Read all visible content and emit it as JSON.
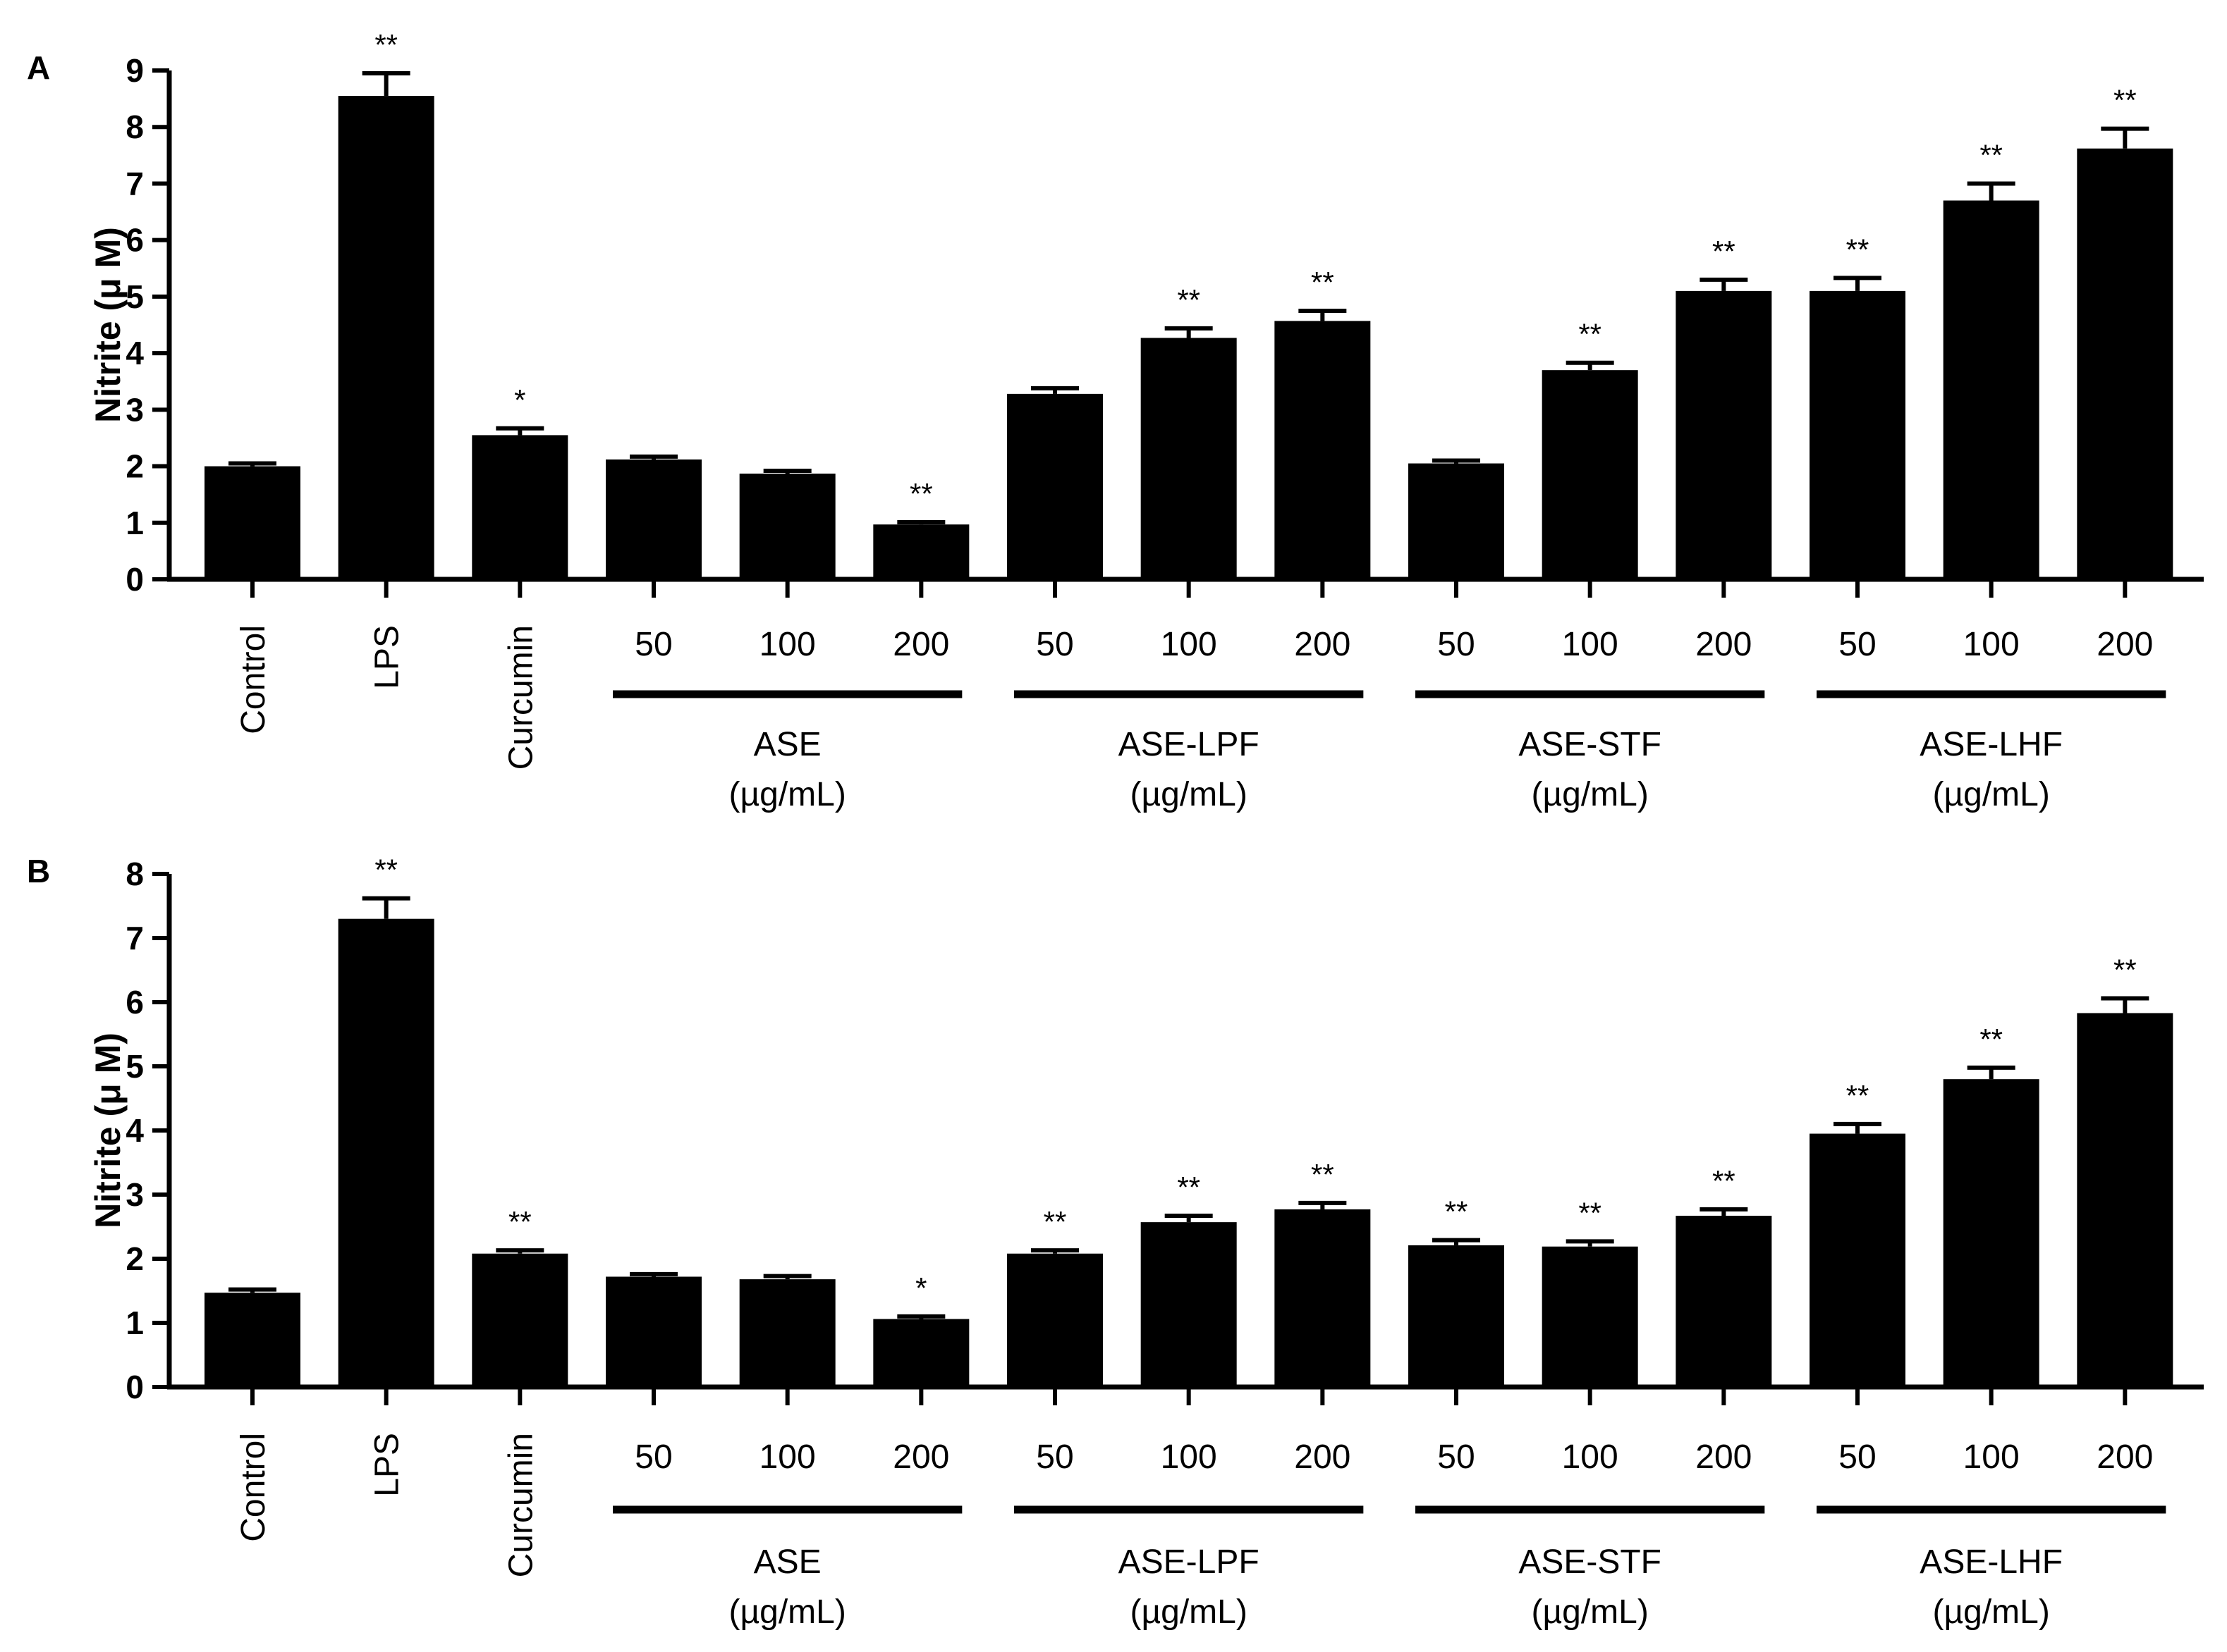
{
  "colors": {
    "bar": "#000000",
    "axis": "#000000",
    "background": "#ffffff"
  },
  "chart_data": [
    {
      "panel": "A",
      "type": "bar",
      "ylabel": "Nitrite (μ M)",
      "ylim": [
        0,
        9
      ],
      "yticks": [
        "0",
        "1",
        "2",
        "3",
        "4",
        "5",
        "6",
        "7",
        "8",
        "9"
      ],
      "bars": [
        {
          "label": "Control",
          "value": 2.0,
          "error": 0.05,
          "sig": ""
        },
        {
          "label": "LPS",
          "value": 8.55,
          "error": 0.4,
          "sig": "**"
        },
        {
          "label": "Curcumin",
          "value": 2.55,
          "error": 0.12,
          "sig": "*"
        },
        {
          "label": "50",
          "value": 2.12,
          "error": 0.05,
          "sig": ""
        },
        {
          "label": "100",
          "value": 1.87,
          "error": 0.05,
          "sig": ""
        },
        {
          "label": "200",
          "value": 0.97,
          "error": 0.04,
          "sig": "**"
        },
        {
          "label": "50",
          "value": 3.28,
          "error": 0.1,
          "sig": ""
        },
        {
          "label": "100",
          "value": 4.27,
          "error": 0.17,
          "sig": "**"
        },
        {
          "label": "200",
          "value": 4.57,
          "error": 0.18,
          "sig": "**"
        },
        {
          "label": "50",
          "value": 2.05,
          "error": 0.05,
          "sig": ""
        },
        {
          "label": "100",
          "value": 3.7,
          "error": 0.13,
          "sig": "**"
        },
        {
          "label": "200",
          "value": 5.1,
          "error": 0.2,
          "sig": "**"
        },
        {
          "label": "50",
          "value": 5.1,
          "error": 0.23,
          "sig": "**"
        },
        {
          "label": "100",
          "value": 6.7,
          "error": 0.3,
          "sig": "**"
        },
        {
          "label": "200",
          "value": 7.62,
          "error": 0.35,
          "sig": "**"
        }
      ],
      "groups": [
        {
          "name": "ASE",
          "unit": "(µg/mL)",
          "start": 3,
          "end": 5
        },
        {
          "name": "ASE-LPF",
          "unit": "(µg/mL)",
          "start": 6,
          "end": 8
        },
        {
          "name": "ASE-STF",
          "unit": "(µg/mL)",
          "start": 9,
          "end": 11
        },
        {
          "name": "ASE-LHF",
          "unit": "(µg/mL)",
          "start": 12,
          "end": 14
        }
      ]
    },
    {
      "panel": "B",
      "type": "bar",
      "ylabel": "Nitrite (μ M)",
      "ylim": [
        0,
        8
      ],
      "yticks": [
        "0",
        "1",
        "2",
        "3",
        "4",
        "5",
        "6",
        "7",
        "8"
      ],
      "bars": [
        {
          "label": "Control",
          "value": 1.47,
          "error": 0.05,
          "sig": ""
        },
        {
          "label": "LPS",
          "value": 7.3,
          "error": 0.32,
          "sig": "**"
        },
        {
          "label": "Curcumin",
          "value": 2.08,
          "error": 0.05,
          "sig": "**"
        },
        {
          "label": "50",
          "value": 1.72,
          "error": 0.04,
          "sig": ""
        },
        {
          "label": "100",
          "value": 1.68,
          "error": 0.05,
          "sig": ""
        },
        {
          "label": "200",
          "value": 1.06,
          "error": 0.04,
          "sig": "*"
        },
        {
          "label": "50",
          "value": 2.08,
          "error": 0.05,
          "sig": "**"
        },
        {
          "label": "100",
          "value": 2.57,
          "error": 0.1,
          "sig": "**"
        },
        {
          "label": "200",
          "value": 2.77,
          "error": 0.1,
          "sig": "**"
        },
        {
          "label": "50",
          "value": 2.21,
          "error": 0.08,
          "sig": "**"
        },
        {
          "label": "100",
          "value": 2.19,
          "error": 0.08,
          "sig": "**"
        },
        {
          "label": "200",
          "value": 2.67,
          "error": 0.1,
          "sig": "**"
        },
        {
          "label": "50",
          "value": 3.95,
          "error": 0.15,
          "sig": "**"
        },
        {
          "label": "100",
          "value": 4.8,
          "error": 0.18,
          "sig": "**"
        },
        {
          "label": "200",
          "value": 5.83,
          "error": 0.23,
          "sig": "**"
        }
      ],
      "groups": [
        {
          "name": "ASE",
          "unit": "(µg/mL)",
          "start": 3,
          "end": 5
        },
        {
          "name": "ASE-LPF",
          "unit": "(µg/mL)",
          "start": 6,
          "end": 8
        },
        {
          "name": "ASE-STF",
          "unit": "(µg/mL)",
          "start": 9,
          "end": 11
        },
        {
          "name": "ASE-LHF",
          "unit": "(µg/mL)",
          "start": 12,
          "end": 14
        }
      ]
    }
  ]
}
